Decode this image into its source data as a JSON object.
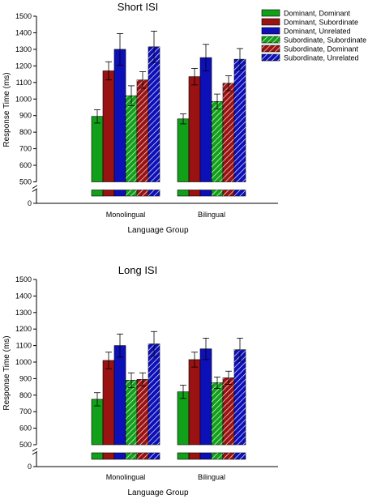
{
  "legend": [
    {
      "label": "Dominant, Dominant",
      "color": "#12a01a",
      "hatched": false
    },
    {
      "label": "Dominant, Subordinate",
      "color": "#9b1212",
      "hatched": false
    },
    {
      "label": "Dominant, Unrelated",
      "color": "#0d10b8",
      "hatched": false
    },
    {
      "label": "Subordinate, Subordinate",
      "color": "#12a01a",
      "hatched": true
    },
    {
      "label": "Subordinate, Dominant",
      "color": "#9b1212",
      "hatched": true
    },
    {
      "label": "Subordinate, Unrelated",
      "color": "#0d10b8",
      "hatched": true
    }
  ],
  "chart_data": [
    {
      "type": "bar",
      "title": "Short ISI",
      "xlabel": "Language Group",
      "ylabel": "Response Time (ms)",
      "ylim": [
        500,
        1500
      ],
      "yticks": [
        "1500",
        "1400",
        "1300",
        "1200",
        "1100",
        "1000",
        "900",
        "800",
        "700",
        "600",
        "500",
        "0"
      ],
      "axis_break": true,
      "categories": [
        "Monolingual",
        "Bilingual"
      ],
      "series": [
        {
          "name": "Dominant, Dominant",
          "values": [
            895,
            880
          ],
          "errors": [
            40,
            30
          ]
        },
        {
          "name": "Dominant, Subordinate",
          "values": [
            1170,
            1135
          ],
          "errors": [
            55,
            50
          ]
        },
        {
          "name": "Dominant, Unrelated",
          "values": [
            1300,
            1250
          ],
          "errors": [
            95,
            80
          ]
        },
        {
          "name": "Subordinate, Subordinate",
          "values": [
            1020,
            985
          ],
          "errors": [
            60,
            45
          ]
        },
        {
          "name": "Subordinate, Dominant",
          "values": [
            1115,
            1095
          ],
          "errors": [
            50,
            45
          ]
        },
        {
          "name": "Subordinate, Unrelated",
          "values": [
            1315,
            1240
          ],
          "errors": [
            95,
            65
          ]
        }
      ]
    },
    {
      "type": "bar",
      "title": "Long ISI",
      "xlabel": "Language Group",
      "ylabel": "Response Time (ms)",
      "ylim": [
        500,
        1500
      ],
      "yticks": [
        "1500",
        "1400",
        "1300",
        "1200",
        "1100",
        "1000",
        "900",
        "800",
        "700",
        "600",
        "500",
        "0"
      ],
      "axis_break": true,
      "categories": [
        "Monolingual",
        "Bilingual"
      ],
      "series": [
        {
          "name": "Dominant, Dominant",
          "values": [
            775,
            820
          ],
          "errors": [
            40,
            40
          ]
        },
        {
          "name": "Dominant, Subordinate",
          "values": [
            1010,
            1015
          ],
          "errors": [
            50,
            45
          ]
        },
        {
          "name": "Dominant, Unrelated",
          "values": [
            1100,
            1080
          ],
          "errors": [
            70,
            65
          ]
        },
        {
          "name": "Subordinate, Subordinate",
          "values": [
            890,
            875
          ],
          "errors": [
            45,
            35
          ]
        },
        {
          "name": "Subordinate, Dominant",
          "values": [
            895,
            905
          ],
          "errors": [
            40,
            40
          ]
        },
        {
          "name": "Subordinate, Unrelated",
          "values": [
            1110,
            1075
          ],
          "errors": [
            75,
            70
          ]
        }
      ]
    }
  ]
}
